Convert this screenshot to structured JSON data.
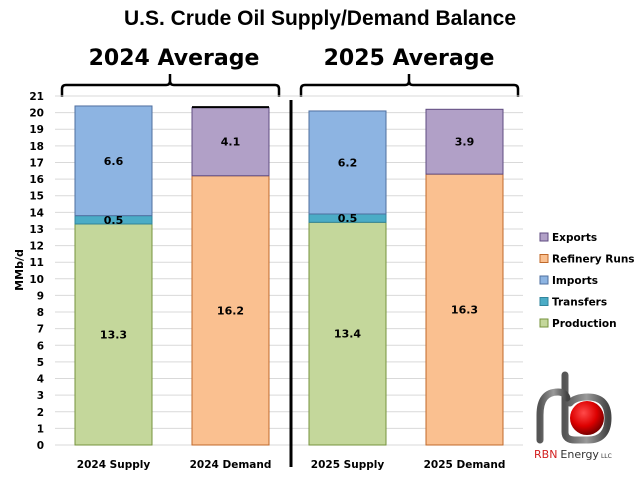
{
  "chart_data": {
    "type": "bar",
    "stacked": true,
    "title": "U.S. Crude Oil Supply/Demand Balance",
    "ylabel": "MMb/d",
    "xlabel": "",
    "ylim": [
      0,
      21
    ],
    "yticks": [
      0,
      1,
      2,
      3,
      4,
      5,
      6,
      7,
      8,
      9,
      10,
      11,
      12,
      13,
      14,
      15,
      16,
      17,
      18,
      19,
      20,
      21
    ],
    "grid": true,
    "legend_position": "right",
    "groups": [
      {
        "label": "2024 Average",
        "categories": [
          "2024 Supply",
          "2024 Demand"
        ]
      },
      {
        "label": "2025 Average",
        "categories": [
          "2025 Supply",
          "2025 Demand"
        ]
      }
    ],
    "categories": [
      "2024 Supply",
      "2024 Demand",
      "2025 Supply",
      "2025 Demand"
    ],
    "series": [
      {
        "name": "Production",
        "color": "#c4d79b",
        "stroke": "#76933c",
        "values": [
          13.3,
          null,
          13.4,
          null
        ],
        "labels": [
          "13.3",
          "",
          "13.4",
          ""
        ]
      },
      {
        "name": "Transfers",
        "color": "#4bacc6",
        "stroke": "#31859c",
        "values": [
          0.5,
          null,
          0.5,
          null
        ],
        "labels": [
          "0.5",
          "",
          "0.5",
          ""
        ]
      },
      {
        "name": "Imports",
        "color": "#8db4e2",
        "stroke": "#4f6f9f",
        "values": [
          6.6,
          null,
          6.2,
          null
        ],
        "labels": [
          "6.6",
          "",
          "6.2",
          ""
        ]
      },
      {
        "name": "Refinery Runs",
        "color": "#fac090",
        "stroke": "#c0692a",
        "values": [
          null,
          16.2,
          null,
          16.3
        ],
        "labels": [
          "",
          "16.2",
          "",
          "16.3"
        ]
      },
      {
        "name": "Exports",
        "color": "#b1a0c7",
        "stroke": "#5f4b80",
        "values": [
          null,
          4.1,
          null,
          3.9
        ],
        "labels": [
          "",
          "4.1",
          "",
          "3.9"
        ]
      }
    ],
    "legend_order": [
      "Exports",
      "Refinery Runs",
      "Imports",
      "Transfers",
      "Production"
    ]
  },
  "logo": {
    "brand": "RBN",
    "name": "Energy",
    "suffix": "LLC"
  }
}
